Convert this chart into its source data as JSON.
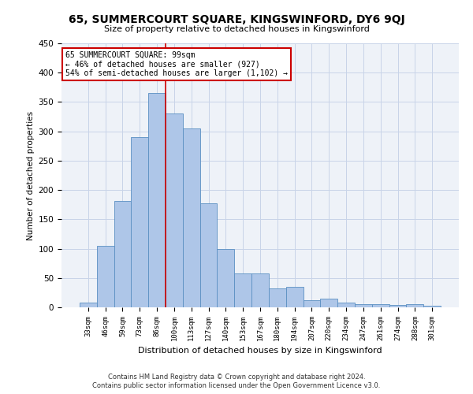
{
  "title": "65, SUMMERCOURT SQUARE, KINGSWINFORD, DY6 9QJ",
  "subtitle": "Size of property relative to detached houses in Kingswinford",
  "xlabel": "Distribution of detached houses by size in Kingswinford",
  "ylabel": "Number of detached properties",
  "footnote1": "Contains HM Land Registry data © Crown copyright and database right 2024.",
  "footnote2": "Contains public sector information licensed under the Open Government Licence v3.0.",
  "categories": [
    "33sqm",
    "46sqm",
    "59sqm",
    "73sqm",
    "86sqm",
    "100sqm",
    "113sqm",
    "127sqm",
    "140sqm",
    "153sqm",
    "167sqm",
    "180sqm",
    "194sqm",
    "207sqm",
    "220sqm",
    "234sqm",
    "247sqm",
    "261sqm",
    "274sqm",
    "288sqm",
    "301sqm"
  ],
  "values": [
    8,
    105,
    182,
    290,
    365,
    330,
    305,
    177,
    100,
    58,
    58,
    32,
    35,
    12,
    15,
    8,
    5,
    5,
    4,
    5,
    3
  ],
  "bar_color": "#aec6e8",
  "bar_edge_color": "#5a8fc2",
  "grid_color": "#c8d4e8",
  "background_color": "#eef2f8",
  "annotation_line1": "65 SUMMERCOURT SQUARE: 99sqm",
  "annotation_line2": "← 46% of detached houses are smaller (927)",
  "annotation_line3": "54% of semi-detached houses are larger (1,102) →",
  "annotation_box_color": "#ffffff",
  "annotation_box_edge": "#cc0000",
  "vline_color": "#cc0000",
  "vline_x_index": 4.5,
  "ylim": [
    0,
    450
  ],
  "yticks": [
    0,
    50,
    100,
    150,
    200,
    250,
    300,
    350,
    400,
    450
  ]
}
